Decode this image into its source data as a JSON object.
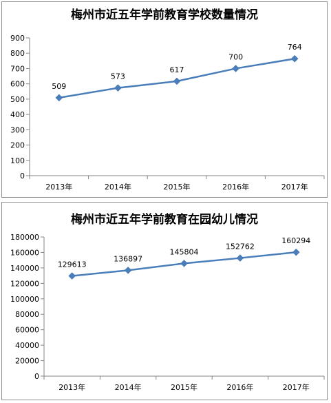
{
  "chart_data": [
    {
      "type": "line",
      "title": "梅州市近五年学前教育学校数量情况",
      "categories": [
        "2013年",
        "2014年",
        "2015年",
        "2016年",
        "2017年"
      ],
      "series": [
        {
          "values": [
            509,
            573,
            617,
            700,
            764
          ]
        }
      ],
      "ylim": [
        0,
        900
      ],
      "yticks": [
        "0",
        "100",
        "200",
        "300",
        "400",
        "500",
        "600",
        "700",
        "800",
        "900"
      ],
      "grid": false,
      "legend": "none",
      "line_color": "#4a7ebb"
    },
    {
      "type": "line",
      "title": "梅州市近五年学前教育在园幼儿情况",
      "categories": [
        "2013年",
        "2014年",
        "2015年",
        "2016年",
        "2017年"
      ],
      "series": [
        {
          "values": [
            129613,
            136897,
            145804,
            152762,
            160294
          ]
        }
      ],
      "ylim": [
        0,
        180000
      ],
      "yticks": [
        "0",
        "20000",
        "40000",
        "60000",
        "80000",
        "100000",
        "120000",
        "140000",
        "160000",
        "180000"
      ],
      "grid": false,
      "legend": "none",
      "line_color": "#4a7ebb"
    }
  ]
}
